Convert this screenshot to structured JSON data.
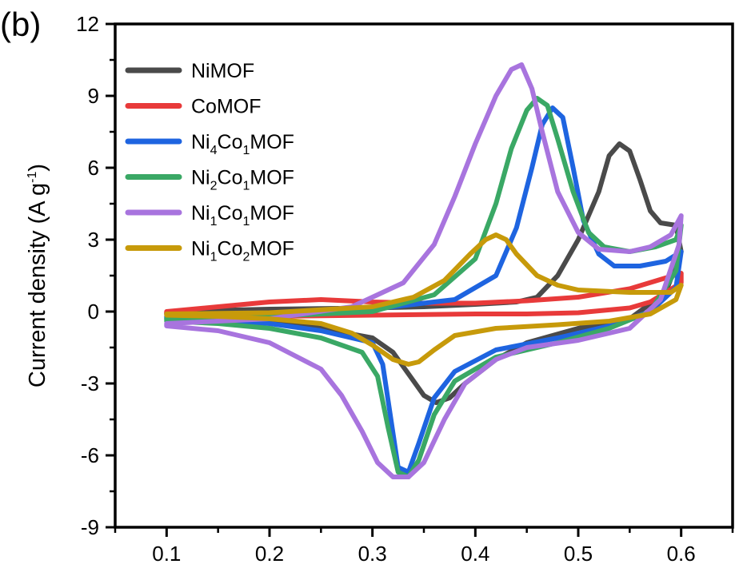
{
  "panel_label": "(b)",
  "chart_data": {
    "type": "line",
    "title": "",
    "xlabel": "",
    "ylabel": "Current density (A g⁻¹)",
    "xlim": [
      0.05,
      0.65
    ],
    "ylim": [
      -9,
      12
    ],
    "xticks": [
      "0.1",
      "0.2",
      "0.3",
      "0.4",
      "0.5",
      "0.6"
    ],
    "yticks": [
      "12",
      "9",
      "6",
      "3",
      "0",
      "-3",
      "-6",
      "-9"
    ],
    "grid": false,
    "legend_position": "top-left",
    "series": [
      {
        "name": "NiMOF",
        "name_parts": [
          {
            "t": "NiMOF"
          }
        ],
        "color": "#4a4a4a",
        "points": [
          [
            0.1,
            -0.05
          ],
          [
            0.15,
            0.05
          ],
          [
            0.2,
            0.1
          ],
          [
            0.3,
            0.15
          ],
          [
            0.35,
            0.2
          ],
          [
            0.4,
            0.3
          ],
          [
            0.44,
            0.4
          ],
          [
            0.46,
            0.6
          ],
          [
            0.48,
            1.5
          ],
          [
            0.5,
            3.0
          ],
          [
            0.52,
            5.0
          ],
          [
            0.53,
            6.5
          ],
          [
            0.54,
            7.0
          ],
          [
            0.55,
            6.7
          ],
          [
            0.56,
            5.5
          ],
          [
            0.57,
            4.2
          ],
          [
            0.58,
            3.7
          ],
          [
            0.595,
            3.6
          ],
          [
            0.6,
            2.5
          ],
          [
            0.585,
            0.8
          ],
          [
            0.55,
            -0.3
          ],
          [
            0.5,
            -0.7
          ],
          [
            0.45,
            -1.3
          ],
          [
            0.42,
            -2.0
          ],
          [
            0.39,
            -3.0
          ],
          [
            0.375,
            -3.6
          ],
          [
            0.362,
            -3.8
          ],
          [
            0.35,
            -3.5
          ],
          [
            0.335,
            -2.6
          ],
          [
            0.32,
            -1.7
          ],
          [
            0.3,
            -1.1
          ],
          [
            0.25,
            -0.7
          ],
          [
            0.2,
            -0.4
          ],
          [
            0.15,
            -0.25
          ],
          [
            0.1,
            -0.1
          ]
        ]
      },
      {
        "name": "CoMOF",
        "name_parts": [
          {
            "t": "CoMOF"
          }
        ],
        "color": "#e83a3a",
        "points": [
          [
            0.1,
            0.0
          ],
          [
            0.15,
            0.2
          ],
          [
            0.2,
            0.4
          ],
          [
            0.25,
            0.5
          ],
          [
            0.3,
            0.4
          ],
          [
            0.35,
            0.35
          ],
          [
            0.4,
            0.35
          ],
          [
            0.45,
            0.45
          ],
          [
            0.5,
            0.6
          ],
          [
            0.55,
            0.95
          ],
          [
            0.6,
            1.6
          ],
          [
            0.6,
            1.2
          ],
          [
            0.57,
            0.4
          ],
          [
            0.55,
            0.15
          ],
          [
            0.5,
            -0.05
          ],
          [
            0.45,
            -0.1
          ],
          [
            0.4,
            -0.1
          ],
          [
            0.3,
            -0.15
          ],
          [
            0.2,
            -0.2
          ],
          [
            0.1,
            -0.1
          ]
        ]
      },
      {
        "name": "Ni₄Co₁MOF",
        "name_parts": [
          {
            "t": "Ni"
          },
          {
            "s": "4"
          },
          {
            "t": "Co"
          },
          {
            "s": "1"
          },
          {
            "t": "MOF"
          }
        ],
        "color": "#1e64e0",
        "points": [
          [
            0.1,
            -0.2
          ],
          [
            0.2,
            -0.1
          ],
          [
            0.3,
            0.1
          ],
          [
            0.38,
            0.5
          ],
          [
            0.42,
            1.5
          ],
          [
            0.44,
            3.5
          ],
          [
            0.455,
            6.0
          ],
          [
            0.465,
            7.8
          ],
          [
            0.475,
            8.5
          ],
          [
            0.485,
            8.1
          ],
          [
            0.495,
            6.0
          ],
          [
            0.505,
            3.8
          ],
          [
            0.52,
            2.4
          ],
          [
            0.535,
            1.9
          ],
          [
            0.56,
            1.9
          ],
          [
            0.585,
            2.1
          ],
          [
            0.6,
            2.5
          ],
          [
            0.595,
            1.0
          ],
          [
            0.57,
            0.0
          ],
          [
            0.53,
            -0.6
          ],
          [
            0.48,
            -1.1
          ],
          [
            0.42,
            -1.6
          ],
          [
            0.38,
            -2.5
          ],
          [
            0.36,
            -3.6
          ],
          [
            0.345,
            -5.5
          ],
          [
            0.335,
            -6.7
          ],
          [
            0.325,
            -6.5
          ],
          [
            0.318,
            -4.5
          ],
          [
            0.31,
            -2.2
          ],
          [
            0.3,
            -1.3
          ],
          [
            0.25,
            -0.8
          ],
          [
            0.2,
            -0.5
          ],
          [
            0.15,
            -0.4
          ],
          [
            0.1,
            -0.3
          ]
        ]
      },
      {
        "name": "Ni₂Co₁MOF",
        "name_parts": [
          {
            "t": "Ni"
          },
          {
            "s": "2"
          },
          {
            "t": "Co"
          },
          {
            "s": "1"
          },
          {
            "t": "MOF"
          }
        ],
        "color": "#3aa865",
        "points": [
          [
            0.1,
            -0.3
          ],
          [
            0.2,
            -0.2
          ],
          [
            0.3,
            0.0
          ],
          [
            0.36,
            0.7
          ],
          [
            0.4,
            2.2
          ],
          [
            0.42,
            4.5
          ],
          [
            0.435,
            6.8
          ],
          [
            0.45,
            8.4
          ],
          [
            0.46,
            8.9
          ],
          [
            0.47,
            8.6
          ],
          [
            0.48,
            7.2
          ],
          [
            0.495,
            5.0
          ],
          [
            0.51,
            3.3
          ],
          [
            0.525,
            2.7
          ],
          [
            0.55,
            2.5
          ],
          [
            0.575,
            2.7
          ],
          [
            0.595,
            3.0
          ],
          [
            0.6,
            3.6
          ],
          [
            0.595,
            1.7
          ],
          [
            0.57,
            0.0
          ],
          [
            0.53,
            -0.7
          ],
          [
            0.48,
            -1.3
          ],
          [
            0.42,
            -1.9
          ],
          [
            0.38,
            -2.9
          ],
          [
            0.36,
            -4.3
          ],
          [
            0.345,
            -6.2
          ],
          [
            0.335,
            -6.9
          ],
          [
            0.325,
            -6.7
          ],
          [
            0.315,
            -4.8
          ],
          [
            0.305,
            -2.7
          ],
          [
            0.29,
            -1.7
          ],
          [
            0.25,
            -1.1
          ],
          [
            0.2,
            -0.7
          ],
          [
            0.15,
            -0.5
          ],
          [
            0.1,
            -0.4
          ]
        ]
      },
      {
        "name": "Ni₁Co₁MOF",
        "name_parts": [
          {
            "t": "Ni"
          },
          {
            "s": "1"
          },
          {
            "t": "Co"
          },
          {
            "s": "1"
          },
          {
            "t": "MOF"
          }
        ],
        "color": "#a874de",
        "points": [
          [
            0.1,
            -0.5
          ],
          [
            0.2,
            -0.3
          ],
          [
            0.28,
            0.2
          ],
          [
            0.33,
            1.2
          ],
          [
            0.36,
            2.8
          ],
          [
            0.38,
            4.8
          ],
          [
            0.4,
            7.0
          ],
          [
            0.42,
            9.0
          ],
          [
            0.435,
            10.1
          ],
          [
            0.445,
            10.3
          ],
          [
            0.455,
            9.3
          ],
          [
            0.465,
            7.5
          ],
          [
            0.48,
            5.0
          ],
          [
            0.5,
            3.3
          ],
          [
            0.52,
            2.6
          ],
          [
            0.55,
            2.5
          ],
          [
            0.57,
            2.7
          ],
          [
            0.59,
            3.2
          ],
          [
            0.6,
            4.0
          ],
          [
            0.598,
            2.8
          ],
          [
            0.58,
            0.5
          ],
          [
            0.55,
            -0.7
          ],
          [
            0.5,
            -1.2
          ],
          [
            0.45,
            -1.5
          ],
          [
            0.42,
            -2.0
          ],
          [
            0.39,
            -3.0
          ],
          [
            0.37,
            -4.5
          ],
          [
            0.35,
            -6.3
          ],
          [
            0.335,
            -6.9
          ],
          [
            0.32,
            -6.9
          ],
          [
            0.305,
            -6.3
          ],
          [
            0.29,
            -5.0
          ],
          [
            0.27,
            -3.5
          ],
          [
            0.25,
            -2.4
          ],
          [
            0.2,
            -1.3
          ],
          [
            0.15,
            -0.8
          ],
          [
            0.1,
            -0.6
          ]
        ]
      },
      {
        "name": "Ni₁Co₂MOF",
        "name_parts": [
          {
            "t": "Ni"
          },
          {
            "s": "1"
          },
          {
            "t": "Co"
          },
          {
            "s": "2"
          },
          {
            "t": "MOF"
          }
        ],
        "color": "#c79a0a",
        "points": [
          [
            0.1,
            -0.1
          ],
          [
            0.2,
            -0.05
          ],
          [
            0.3,
            0.2
          ],
          [
            0.34,
            0.6
          ],
          [
            0.37,
            1.3
          ],
          [
            0.395,
            2.4
          ],
          [
            0.41,
            3.0
          ],
          [
            0.42,
            3.2
          ],
          [
            0.43,
            3.0
          ],
          [
            0.44,
            2.4
          ],
          [
            0.46,
            1.5
          ],
          [
            0.48,
            1.1
          ],
          [
            0.5,
            0.9
          ],
          [
            0.55,
            0.8
          ],
          [
            0.59,
            0.8
          ],
          [
            0.6,
            1.1
          ],
          [
            0.595,
            0.5
          ],
          [
            0.57,
            -0.1
          ],
          [
            0.53,
            -0.4
          ],
          [
            0.48,
            -0.55
          ],
          [
            0.42,
            -0.7
          ],
          [
            0.38,
            -1.0
          ],
          [
            0.36,
            -1.6
          ],
          [
            0.345,
            -2.1
          ],
          [
            0.335,
            -2.2
          ],
          [
            0.32,
            -2.0
          ],
          [
            0.3,
            -1.4
          ],
          [
            0.28,
            -0.9
          ],
          [
            0.25,
            -0.5
          ],
          [
            0.2,
            -0.3
          ],
          [
            0.15,
            -0.2
          ],
          [
            0.1,
            -0.15
          ]
        ]
      }
    ]
  }
}
